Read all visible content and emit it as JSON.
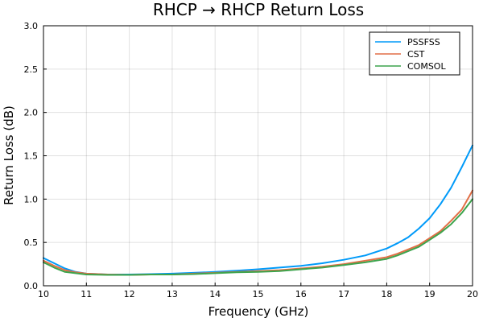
{
  "chart_data": {
    "type": "line",
    "title": "RHCP → RHCP Return Loss",
    "xlabel": "Frequency (GHz)",
    "ylabel": "Return Loss (dB)",
    "xlim": [
      10,
      20
    ],
    "ylim": [
      0,
      3
    ],
    "xticks": [
      "10",
      "11",
      "12",
      "13",
      "14",
      "15",
      "16",
      "17",
      "18",
      "19",
      "20"
    ],
    "yticks": [
      "0.0",
      "0.5",
      "1.0",
      "1.5",
      "2.0",
      "2.5",
      "3.0"
    ],
    "grid": true,
    "legend_position": "top-right",
    "series": [
      {
        "name": "PSSFSS",
        "color": "#009af9",
        "x": [
          10,
          10.25,
          10.5,
          10.75,
          11,
          11.5,
          12,
          12.5,
          13,
          13.5,
          14,
          14.5,
          15,
          15.5,
          16,
          16.5,
          17,
          17.5,
          18,
          18.25,
          18.5,
          18.75,
          19,
          19.25,
          19.5,
          19.75,
          20
        ],
        "y": [
          0.32,
          0.26,
          0.2,
          0.16,
          0.14,
          0.13,
          0.13,
          0.135,
          0.14,
          0.15,
          0.16,
          0.175,
          0.19,
          0.21,
          0.23,
          0.26,
          0.3,
          0.35,
          0.43,
          0.49,
          0.56,
          0.66,
          0.78,
          0.94,
          1.13,
          1.37,
          1.62
        ]
      },
      {
        "name": "CST",
        "color": "#e26f46",
        "x": [
          10,
          10.25,
          10.5,
          10.75,
          11,
          11.5,
          12,
          12.5,
          13,
          13.5,
          14,
          14.5,
          15,
          15.5,
          16,
          16.5,
          17,
          17.5,
          18,
          18.25,
          18.5,
          18.75,
          19,
          19.25,
          19.5,
          19.75,
          20
        ],
        "y": [
          0.29,
          0.23,
          0.18,
          0.155,
          0.14,
          0.13,
          0.125,
          0.13,
          0.13,
          0.14,
          0.15,
          0.16,
          0.17,
          0.18,
          0.2,
          0.22,
          0.25,
          0.29,
          0.33,
          0.37,
          0.42,
          0.47,
          0.55,
          0.63,
          0.75,
          0.88,
          1.1
        ]
      },
      {
        "name": "COMSOL",
        "color": "#3da44d",
        "x": [
          10,
          10.25,
          10.5,
          10.75,
          11,
          11.5,
          12,
          12.5,
          13,
          13.5,
          14,
          14.5,
          15,
          15.5,
          16,
          16.5,
          17,
          17.5,
          18,
          18.25,
          18.5,
          18.75,
          19,
          19.25,
          19.5,
          19.75,
          20
        ],
        "y": [
          0.27,
          0.21,
          0.16,
          0.145,
          0.13,
          0.125,
          0.125,
          0.13,
          0.13,
          0.135,
          0.145,
          0.155,
          0.16,
          0.17,
          0.19,
          0.21,
          0.24,
          0.27,
          0.31,
          0.35,
          0.4,
          0.45,
          0.53,
          0.61,
          0.71,
          0.84,
          1.0
        ]
      }
    ]
  }
}
